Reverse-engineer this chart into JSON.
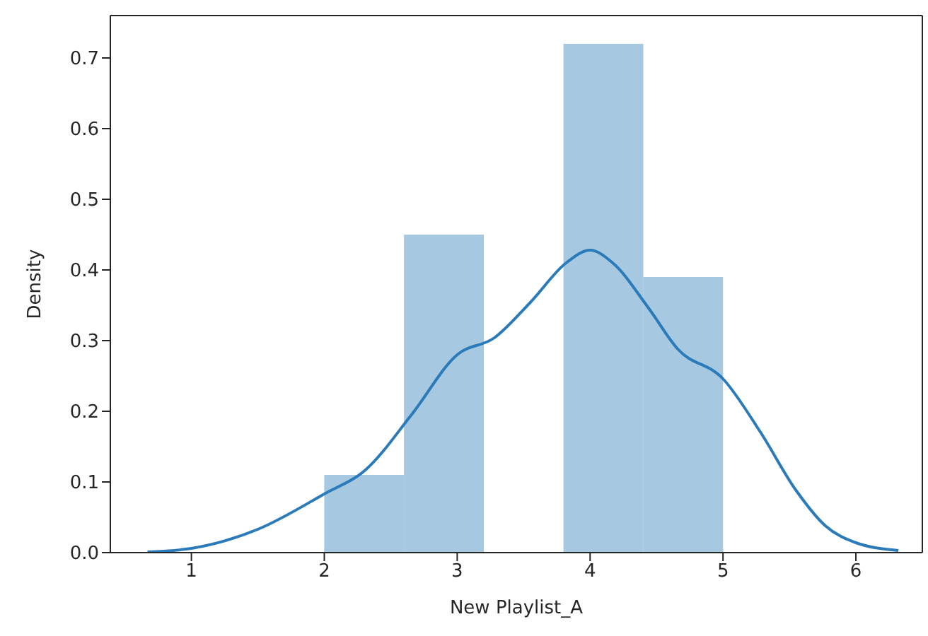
{
  "chart_data": {
    "type": "histogram",
    "xlabel": "New Playlist_A",
    "ylabel": "Density",
    "series": [
      {
        "color": "#a6c8e1",
        "bins": [
          2,
          2.6,
          3.2,
          3.8,
          4.4,
          5.0
        ],
        "values": [
          0.11,
          0.45,
          0,
          0.72,
          0.39
        ]
      },
      {
        "type": "line",
        "color": "#2b7bba",
        "x": [
          0.67,
          1,
          1.5,
          2,
          2.31,
          2.66,
          3,
          3.28,
          3.55,
          3.82,
          4,
          4.17,
          4.44,
          4.66,
          5,
          5.28,
          5.55,
          5.77,
          6,
          6.32
        ],
        "values": [
          0.001,
          0.006,
          0.033,
          0.083,
          0.117,
          0.196,
          0.28,
          0.304,
          0.354,
          0.41,
          0.428,
          0.41,
          0.346,
          0.288,
          0.246,
          0.171,
          0.088,
          0.038,
          0.014,
          0.003
        ]
      }
    ],
    "xlim": [
      0.39,
      6.5
    ],
    "xticks": [
      1,
      2,
      3,
      4,
      5,
      6
    ],
    "ylim": [
      0,
      0.76
    ],
    "yticks": [
      {
        "value": 0,
        "label": "0.0"
      },
      0.1,
      0.2,
      0.3,
      0.4,
      0.5,
      0.6,
      0.7
    ],
    "grid": false,
    "legend": false
  }
}
